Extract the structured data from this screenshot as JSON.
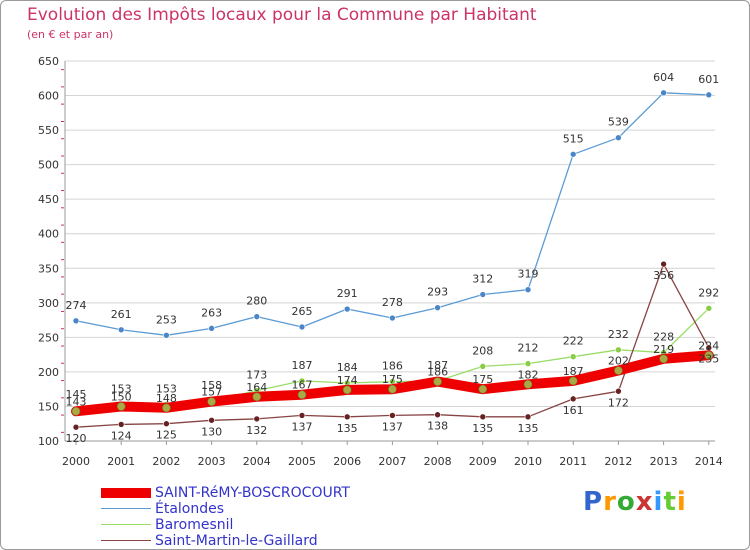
{
  "title": "Evolution des Impôts locaux pour la Commune par Habitant",
  "subtitle": "(en € et par an)",
  "logo": {
    "text": "Proxiti",
    "letters": [
      "P",
      "r",
      "o",
      "x",
      "i",
      "t",
      "i"
    ],
    "colors": [
      "#3366cc",
      "#ff9900",
      "#33aa33",
      "#cc3333",
      "#3399ff",
      "#66cc33",
      "#ff9900"
    ]
  },
  "chart_data": {
    "type": "line",
    "title": "Evolution des Impôts locaux pour la Commune par Habitant",
    "subtitle": "(en € et par an)",
    "x": [
      2000,
      2001,
      2002,
      2003,
      2004,
      2005,
      2006,
      2007,
      2008,
      2009,
      2010,
      2011,
      2012,
      2013,
      2014
    ],
    "x_tick_labels": [
      "2000",
      "2001",
      "2002",
      "2003",
      "2004",
      "2005",
      "2006",
      "2007",
      "2008",
      "2009",
      "2010",
      "2011",
      "2012",
      "2013",
      "2014"
    ],
    "ylim": [
      100,
      650
    ],
    "y_ticks": [
      100,
      150,
      200,
      250,
      300,
      350,
      400,
      450,
      500,
      550,
      600,
      650
    ],
    "y_tick_labels": [
      "100",
      "150",
      "200",
      "250",
      "300",
      "350",
      "400",
      "450",
      "500",
      "550",
      "600",
      "650"
    ],
    "grid": "horizontal",
    "series": [
      {
        "name": "Étalondes",
        "color": "#5b9bd5",
        "marker": "#4a86c8",
        "values": [
          274,
          261,
          253,
          263,
          280,
          265,
          291,
          278,
          293,
          312,
          319,
          515,
          539,
          604,
          601
        ],
        "labels": [
          "274",
          "261",
          "253",
          "263",
          "280",
          "265",
          "291",
          "278",
          "293",
          "312",
          "319",
          "515",
          "539",
          "604",
          "601"
        ]
      },
      {
        "name": "Baromesnil",
        "color": "#99dd66",
        "marker": "#88cc44",
        "values": [
          145,
          153,
          153,
          158,
          173,
          187,
          184,
          186,
          187,
          208,
          212,
          222,
          232,
          228,
          292
        ],
        "labels": [
          "145",
          "153",
          "153",
          "158",
          "173",
          "187",
          "184",
          "186",
          "187",
          "208",
          "212",
          "222",
          "232",
          "228",
          "292"
        ]
      },
      {
        "name": "Saint-Martin-le-Gaillard",
        "color": "#884444",
        "marker": "#662222",
        "values": [
          120,
          124,
          125,
          130,
          132,
          137,
          135,
          137,
          138,
          135,
          135,
          161,
          172,
          356,
          235
        ],
        "labels": [
          "120",
          "124",
          "125",
          "130",
          "132",
          "137",
          "135",
          "137",
          "138",
          "135",
          "135",
          "161",
          "172",
          "356",
          "235"
        ]
      },
      {
        "name": "SAINT-RéMY-BOSCROCOURT",
        "color": "#ee0000",
        "marker": "#aaaa44",
        "values": [
          143,
          150,
          148,
          157,
          164,
          167,
          174,
          175,
          186,
          175,
          182,
          187,
          202,
          219,
          224
        ],
        "labels": [
          "143",
          "150",
          "148",
          "157",
          "164",
          "167",
          "174",
          "175",
          "186",
          "175",
          "182",
          "187",
          "202",
          "219",
          "224"
        ]
      }
    ],
    "legend": [
      "SAINT-RéMY-BOSCROCOURT",
      "Étalondes",
      "Baromesnil",
      "Saint-Martin-le-Gaillard"
    ]
  }
}
